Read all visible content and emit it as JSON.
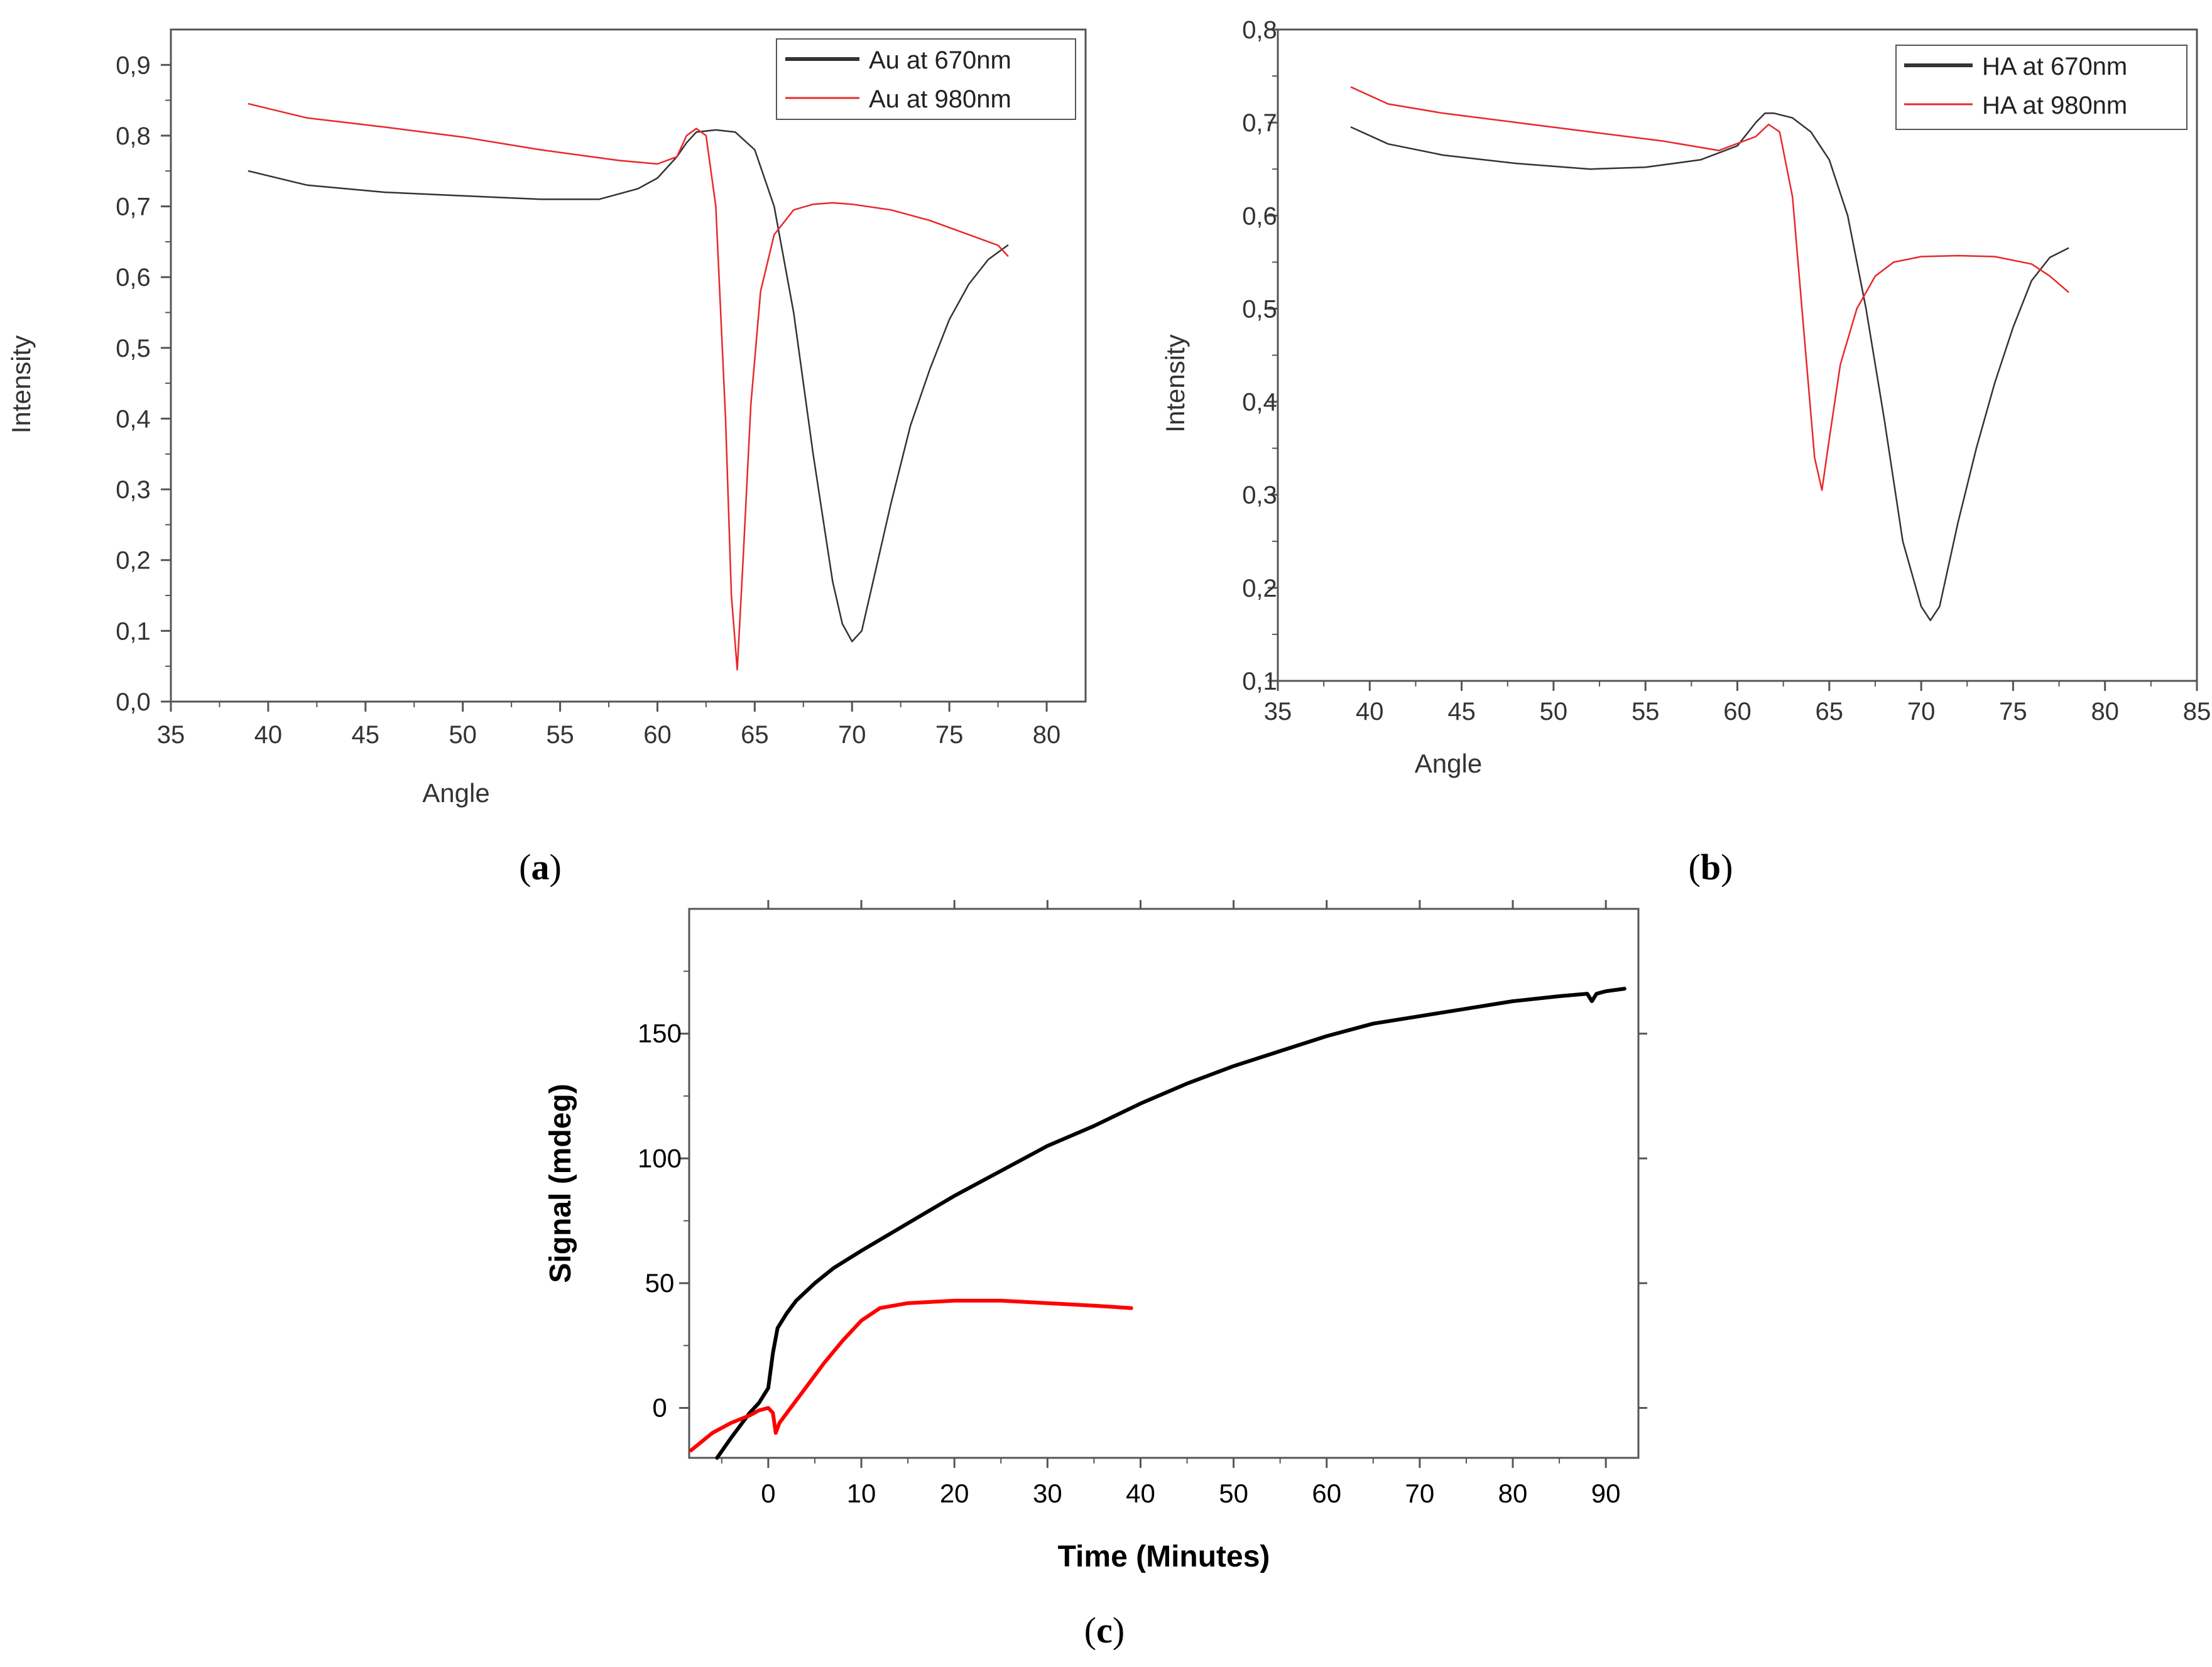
{
  "chart_data": [
    {
      "id": "a",
      "type": "line",
      "caption_letter": "a",
      "xlabel": "Angle",
      "ylabel": "Intensity",
      "xlim": [
        35,
        82
      ],
      "ylim": [
        0.0,
        0.95
      ],
      "x_ticks": [
        35,
        40,
        45,
        50,
        55,
        60,
        65,
        70,
        75,
        80
      ],
      "x_tick_labels": [
        "35",
        "40",
        "45",
        "50",
        "55",
        "60",
        "65",
        "70",
        "75",
        "80"
      ],
      "y_ticks": [
        0.0,
        0.1,
        0.2,
        0.3,
        0.4,
        0.5,
        0.6,
        0.7,
        0.8,
        0.9
      ],
      "y_tick_labels": [
        "0,0",
        "0,1",
        "0,2",
        "0,3",
        "0,4",
        "0,5",
        "0,6",
        "0,7",
        "0,8",
        "0,9"
      ],
      "legend_position": "top-right",
      "series": [
        {
          "name": "Au at 670nm",
          "color": "#333333",
          "x": [
            39,
            42,
            46,
            50,
            54,
            57,
            59,
            60,
            61,
            61.5,
            62,
            63,
            64,
            65,
            66,
            67,
            68,
            69,
            69.5,
            70,
            70.5,
            71,
            72,
            73,
            74,
            75,
            76,
            77,
            78
          ],
          "y": [
            0.75,
            0.73,
            0.72,
            0.715,
            0.71,
            0.71,
            0.725,
            0.74,
            0.77,
            0.79,
            0.805,
            0.808,
            0.805,
            0.78,
            0.7,
            0.55,
            0.35,
            0.17,
            0.11,
            0.085,
            0.1,
            0.16,
            0.28,
            0.39,
            0.47,
            0.54,
            0.59,
            0.625,
            0.645
          ]
        },
        {
          "name": "Au at 980nm",
          "color": "#e8282b",
          "x": [
            39,
            42,
            46,
            50,
            54,
            58,
            60,
            61,
            61.5,
            62,
            62.5,
            63,
            63.5,
            63.8,
            64.1,
            64.4,
            64.8,
            65.3,
            66,
            67,
            68,
            69,
            70,
            72,
            74,
            76,
            77,
            77.5,
            78
          ],
          "y": [
            0.845,
            0.825,
            0.812,
            0.798,
            0.78,
            0.765,
            0.76,
            0.77,
            0.8,
            0.81,
            0.8,
            0.7,
            0.4,
            0.15,
            0.045,
            0.2,
            0.42,
            0.58,
            0.66,
            0.695,
            0.703,
            0.705,
            0.703,
            0.695,
            0.68,
            0.66,
            0.65,
            0.645,
            0.63
          ]
        }
      ]
    },
    {
      "id": "b",
      "type": "line",
      "caption_letter": "b",
      "xlabel": "Angle",
      "ylabel": "Intensity",
      "xlim": [
        35,
        85
      ],
      "ylim": [
        0.1,
        0.8
      ],
      "x_ticks": [
        35,
        40,
        45,
        50,
        55,
        60,
        65,
        70,
        75,
        80,
        85
      ],
      "x_tick_labels": [
        "35",
        "40",
        "45",
        "50",
        "55",
        "60",
        "65",
        "70",
        "75",
        "80",
        "85"
      ],
      "y_ticks": [
        0.1,
        0.2,
        0.3,
        0.4,
        0.5,
        0.6,
        0.7,
        0.8
      ],
      "y_tick_labels": [
        "0,1",
        "0,2",
        "0,3",
        "0,4",
        "0,5",
        "0,6",
        "0,7",
        "0,8"
      ],
      "legend_position": "top-right",
      "series": [
        {
          "name": "HA at 670nm",
          "color": "#333333",
          "x": [
            39,
            41,
            44,
            48,
            52,
            55,
            58,
            60,
            61,
            61.5,
            62,
            63,
            64,
            65,
            66,
            67,
            68,
            69,
            70,
            70.5,
            71,
            72,
            73,
            74,
            75,
            76,
            77,
            78
          ],
          "y": [
            0.695,
            0.677,
            0.665,
            0.656,
            0.65,
            0.652,
            0.66,
            0.675,
            0.7,
            0.71,
            0.71,
            0.705,
            0.69,
            0.66,
            0.6,
            0.5,
            0.38,
            0.25,
            0.18,
            0.165,
            0.18,
            0.27,
            0.35,
            0.42,
            0.48,
            0.53,
            0.555,
            0.565
          ]
        },
        {
          "name": "HA at 980nm",
          "color": "#e8282b",
          "x": [
            39,
            41,
            44,
            48,
            52,
            56,
            59,
            61,
            61.7,
            62.3,
            63,
            63.6,
            64.2,
            64.6,
            65,
            65.6,
            66.5,
            67.5,
            68.5,
            70,
            72,
            74,
            76,
            77,
            78
          ],
          "y": [
            0.738,
            0.72,
            0.71,
            0.7,
            0.69,
            0.68,
            0.67,
            0.685,
            0.698,
            0.69,
            0.62,
            0.48,
            0.34,
            0.305,
            0.36,
            0.44,
            0.5,
            0.535,
            0.55,
            0.556,
            0.557,
            0.556,
            0.548,
            0.535,
            0.518
          ]
        }
      ]
    },
    {
      "id": "c",
      "type": "line",
      "caption_letter": "c",
      "xlabel": "Time (Minutes)",
      "ylabel": "Signal (mdeg)",
      "xlim": [
        -8.5,
        93.5
      ],
      "ylim": [
        -20,
        200
      ],
      "x_ticks": [
        0,
        10,
        20,
        30,
        40,
        50,
        60,
        70,
        80,
        90
      ],
      "x_tick_labels": [
        "0",
        "10",
        "20",
        "30",
        "40",
        "50",
        "60",
        "70",
        "80",
        "90"
      ],
      "y_ticks": [
        0,
        50,
        100,
        150
      ],
      "y_tick_labels": [
        "0",
        "50",
        "100",
        "150"
      ],
      "series": [
        {
          "name": "black",
          "color": "#000000",
          "x": [
            -5.5,
            -4,
            -2,
            -1,
            0,
            0.5,
            1,
            2,
            3,
            5,
            7,
            10,
            15,
            20,
            25,
            30,
            35,
            40,
            45,
            50,
            55,
            60,
            65,
            70,
            75,
            80,
            85,
            88,
            88.5,
            89,
            90,
            92
          ],
          "y": [
            -20,
            -12,
            -2,
            2,
            8,
            22,
            32,
            38,
            43,
            50,
            56,
            63,
            74,
            85,
            95,
            105,
            113,
            122,
            130,
            137,
            143,
            149,
            154,
            157,
            160,
            163,
            165,
            166,
            163,
            166,
            167,
            168
          ]
        },
        {
          "name": "red",
          "color": "#ff0000",
          "x": [
            -8.3,
            -6,
            -4,
            -2,
            -1,
            0,
            0.5,
            0.8,
            1.2,
            2,
            4,
            6,
            8,
            10,
            12,
            15,
            20,
            25,
            30,
            35,
            39
          ],
          "y": [
            -17,
            -10,
            -6,
            -3,
            -1,
            0,
            -2,
            -10,
            -6,
            -2,
            8,
            18,
            27,
            35,
            40,
            42,
            43,
            43,
            42,
            41,
            40
          ]
        }
      ]
    }
  ]
}
